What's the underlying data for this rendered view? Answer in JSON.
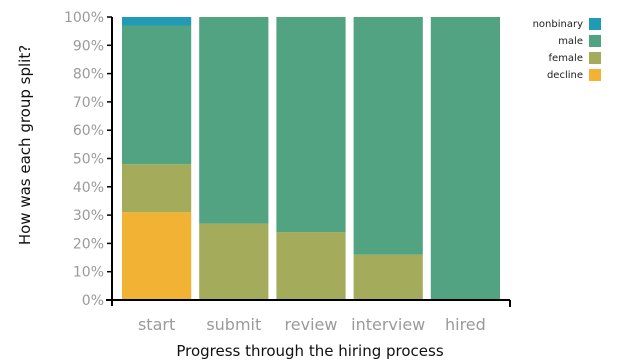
{
  "chart_data": {
    "type": "bar",
    "stacked": true,
    "categories": [
      "start",
      "submit",
      "review",
      "interview",
      "hired"
    ],
    "series": [
      {
        "name": "decline",
        "color": "#f2b233",
        "values": [
          31,
          0,
          0,
          0,
          0
        ]
      },
      {
        "name": "female",
        "color": "#a4ab5a",
        "values": [
          17,
          27,
          24,
          16,
          0
        ]
      },
      {
        "name": "male",
        "color": "#52a382",
        "values": [
          49,
          73,
          76,
          84,
          100
        ]
      },
      {
        "name": "nonbinary",
        "color": "#1f9bb5",
        "values": [
          3,
          0,
          0,
          0,
          0
        ]
      }
    ],
    "legend_order": [
      "nonbinary",
      "male",
      "female",
      "decline"
    ],
    "xlabel": "Progress through the hiring process",
    "ylabel": "How was each group split?",
    "ylim": [
      0,
      100
    ],
    "yticks": [
      "0%",
      "10%",
      "20%",
      "30%",
      "40%",
      "50%",
      "60%",
      "70%",
      "80%",
      "90%",
      "100%"
    ],
    "legend_position": "top-right",
    "grid": false
  }
}
